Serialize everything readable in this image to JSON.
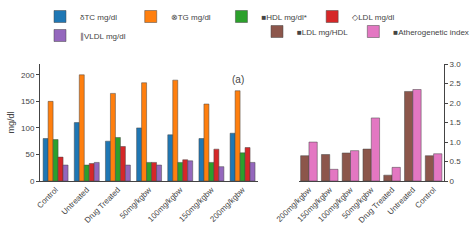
{
  "chart_data": [
    {
      "type": "bar",
      "categories": [
        "Control",
        "Untreated",
        "Drug Treated",
        "50mg/kgbw",
        "100mg/kgbw",
        "150mg/kgbw",
        "200mg/kgbw"
      ],
      "series": [
        {
          "name": "δTC mg/dl",
          "values": [
            80,
            110,
            75,
            100,
            87,
            80,
            90
          ]
        },
        {
          "name": "⊗TG mg/dl",
          "values": [
            150,
            200,
            165,
            185,
            190,
            145,
            170
          ]
        },
        {
          "name": "■HDL mg/dl*",
          "values": [
            78,
            30,
            82,
            35,
            35,
            35,
            53
          ]
        },
        {
          "name": "◇LDL mg/dl",
          "values": [
            45,
            33,
            65,
            35,
            40,
            60,
            63
          ]
        },
        {
          "name": "∥VLDL mg/dl",
          "values": [
            30,
            35,
            30,
            30,
            38,
            27,
            35
          ]
        }
      ],
      "ylabel": "mg/dl",
      "ylim": [
        0,
        220
      ],
      "yticks": [
        0,
        50,
        100,
        150,
        200
      ],
      "annotation": "(a)",
      "legend": "upper left",
      "grid": false
    },
    {
      "type": "bar",
      "categories": [
        "200mg/kgbw",
        "150mg/kgbw",
        "100mg/kgbw",
        "50mg/kgbw",
        "Drug Treated",
        "Untreated",
        "Control"
      ],
      "series": [
        {
          "name": "■LDL mg/HDL",
          "values": [
            0.65,
            0.68,
            0.72,
            0.82,
            0.15,
            2.3,
            0.65
          ]
        },
        {
          "name": "■Atherogenetic index",
          "values": [
            1.0,
            0.3,
            0.78,
            1.62,
            0.35,
            2.35,
            0.7
          ]
        }
      ],
      "ylim": [
        0,
        3
      ],
      "yticks": [
        0,
        0.5,
        {
          "value": 1.0,
          "label": "1.0"
        },
        1.5,
        {
          "value": 2.0,
          "label": "2.0"
        },
        2.5,
        {
          "value": 3.0,
          "label": "3.0"
        }
      ],
      "legend": "upper left",
      "grid": false
    }
  ]
}
